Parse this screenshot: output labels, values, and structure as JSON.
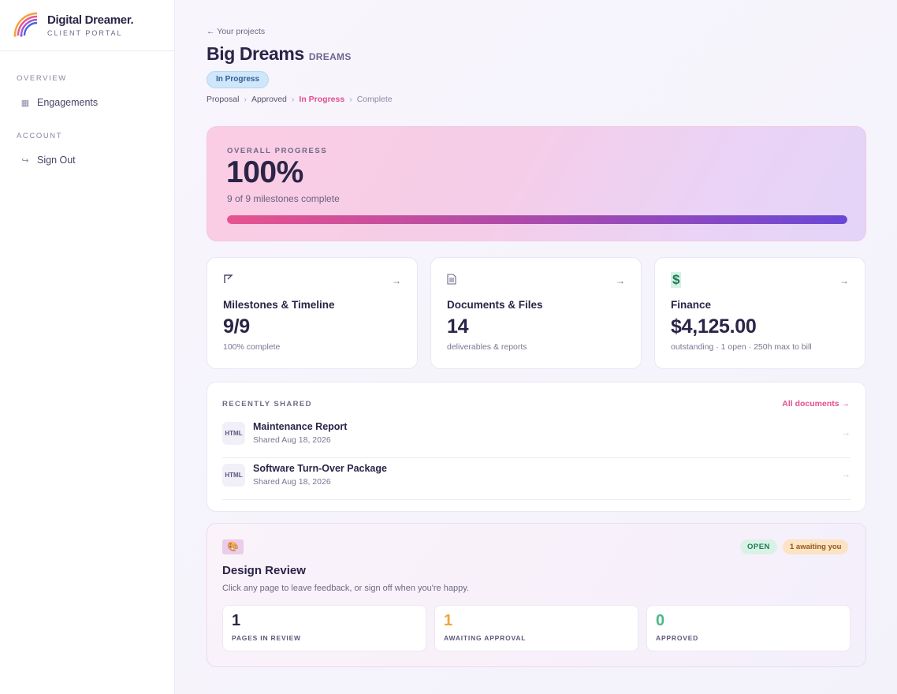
{
  "sidebar": {
    "brand_name": "Digital Dreamer.",
    "brand_sub": "CLIENT PORTAL",
    "sections": [
      {
        "label": "OVERVIEW",
        "items": [
          {
            "label": "Engagements",
            "icon": "grid-icon"
          }
        ]
      },
      {
        "label": "ACCOUNT",
        "items": [
          {
            "label": "Sign Out",
            "icon": "sign-out-icon"
          }
        ]
      }
    ]
  },
  "header": {
    "back_link": "← Your projects",
    "title": "Big Dreams",
    "project_code": "DREAMS",
    "status": "In Progress",
    "stages": [
      "Proposal",
      "Approved",
      "In Progress",
      "Complete"
    ],
    "current_stage_index": 2
  },
  "progress": {
    "label": "OVERALL PROGRESS",
    "value": "100%",
    "sub": "9 of 9 milestones complete",
    "fraction": 1.0
  },
  "stats": [
    {
      "title": "Milestones & Timeline",
      "value": "9/9",
      "sub": "100% complete",
      "icon": "flag-icon",
      "arrow": "→"
    },
    {
      "title": "Documents & Files",
      "value": "14",
      "sub": "deliverables & reports",
      "icon": "document-icon",
      "arrow": "→"
    },
    {
      "title": "Finance",
      "value": "$4,125.00",
      "sub": "outstanding · 1 open · 250h max to bill",
      "icon": "dollar-icon",
      "arrow": "→"
    }
  ],
  "recent": {
    "label": "RECENTLY SHARED",
    "link": "All documents →",
    "docs": [
      {
        "type": "HTML",
        "name": "Maintenance Report",
        "date": "Shared Aug 18, 2026"
      },
      {
        "type": "HTML",
        "name": "Software Turn-Over Package",
        "date": "Shared Aug 18, 2026"
      }
    ]
  },
  "review": {
    "title": "Design Review",
    "sub": "Click any page to leave feedback, or sign off when you're happy.",
    "badge_open": "OPEN",
    "badge_await": "1 awaiting you",
    "stats": [
      {
        "value": "1",
        "label": "PAGES IN REVIEW",
        "color": "#2a2547"
      },
      {
        "value": "1",
        "label": "AWAITING APPROVAL",
        "color": "#f0a43a"
      },
      {
        "value": "0",
        "label": "APPROVED",
        "color": "#4cb888"
      }
    ]
  },
  "colors": {
    "accent_pink": "#e14f8f",
    "accent_purple": "#6a47d6",
    "status_blue": "#cfe6fb"
  }
}
